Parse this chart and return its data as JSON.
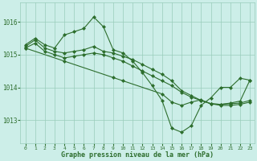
{
  "xlabel": "Graphe pression niveau de la mer (hPa)",
  "background_color": "#cceee8",
  "grid_color": "#99ccbb",
  "line_color": "#2d6e2d",
  "marker_color": "#2d6e2d",
  "xlim": [
    -0.5,
    23.5
  ],
  "ylim": [
    1012.3,
    1016.6
  ],
  "yticks": [
    1013,
    1014,
    1015,
    1016
  ],
  "xticks": [
    0,
    1,
    2,
    3,
    4,
    5,
    6,
    7,
    8,
    9,
    10,
    11,
    12,
    13,
    14,
    15,
    16,
    17,
    18,
    19,
    20,
    21,
    22,
    23
  ],
  "line1_x": [
    0,
    1,
    2,
    3,
    4,
    5,
    6,
    7,
    8,
    9,
    10,
    11,
    12,
    13,
    14,
    15,
    16,
    17,
    18,
    19,
    20,
    21,
    22,
    23
  ],
  "line1_y": [
    1015.3,
    1015.5,
    1015.3,
    1015.2,
    1015.6,
    1015.7,
    1015.8,
    1016.15,
    1015.85,
    1015.15,
    1015.05,
    1014.8,
    1014.45,
    1014.05,
    1013.6,
    1012.75,
    1012.63,
    1012.83,
    1013.45,
    1013.68,
    1014.0,
    1014.0,
    1014.28,
    1014.22
  ],
  "line2_x": [
    0,
    1,
    2,
    3,
    4,
    5,
    6,
    7,
    8,
    9,
    10,
    11,
    12,
    13,
    14,
    15,
    16,
    17,
    18,
    19,
    20,
    21,
    22,
    23
  ],
  "line2_y": [
    1015.25,
    1015.45,
    1015.2,
    1015.1,
    1015.05,
    1015.1,
    1015.15,
    1015.25,
    1015.1,
    1015.05,
    1014.95,
    1014.85,
    1014.7,
    1014.55,
    1014.4,
    1014.2,
    1013.9,
    1013.75,
    1013.6,
    1013.5,
    1013.48,
    1013.5,
    1013.52,
    1013.6
  ],
  "line3_x": [
    0,
    1,
    2,
    3,
    4,
    5,
    6,
    7,
    8,
    9,
    10,
    11,
    12,
    13,
    14,
    15,
    16,
    17,
    18,
    19,
    20,
    21,
    22,
    23
  ],
  "line3_y": [
    1015.2,
    1015.35,
    1015.1,
    1015.0,
    1014.9,
    1014.95,
    1015.0,
    1015.05,
    1015.0,
    1014.9,
    1014.8,
    1014.65,
    1014.5,
    1014.35,
    1014.2,
    1014.05,
    1013.85,
    1013.7,
    1013.6,
    1013.5,
    1013.45,
    1013.45,
    1013.48,
    1013.55
  ],
  "line4_x": [
    0,
    4,
    9,
    10,
    14,
    15,
    16,
    17,
    18,
    19,
    20,
    21,
    22,
    23
  ],
  "line4_y": [
    1015.2,
    1014.8,
    1014.3,
    1014.2,
    1013.8,
    1013.55,
    1013.45,
    1013.55,
    1013.62,
    1013.5,
    1013.48,
    1013.52,
    1013.58,
    1014.22
  ]
}
